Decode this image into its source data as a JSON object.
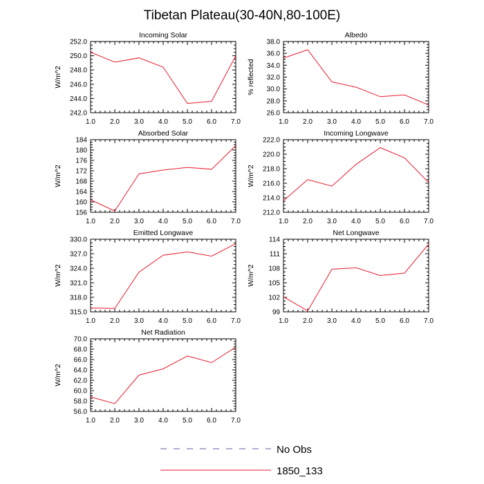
{
  "title": "Tibetan Plateau(30-40N,80-100E)",
  "legend": [
    {
      "label": "No Obs",
      "color": "#5a5aa8",
      "dashed": true
    },
    {
      "label": "1850_133",
      "color": "#e8192c",
      "dashed": false
    }
  ],
  "chart_data": [
    {
      "type": "line",
      "title": "Incoming Solar",
      "ylabel": "W/m^2",
      "xlim": [
        1,
        7
      ],
      "ylim": [
        242,
        252
      ],
      "xticks": [
        "1.0",
        "2.0",
        "3.0",
        "4.0",
        "5.0",
        "6.0",
        "7.0"
      ],
      "yticks": [
        "242.0",
        "244.0",
        "246.0",
        "248.0",
        "250.0",
        "252.0"
      ],
      "x": [
        1,
        2,
        3,
        4,
        5,
        6,
        7
      ],
      "series": [
        {
          "name": "1850_133",
          "values": [
            250.5,
            249.1,
            249.7,
            248.4,
            243.3,
            243.6,
            250.0
          ]
        }
      ]
    },
    {
      "type": "line",
      "title": "Albedo",
      "ylabel": "% reflected",
      "xlim": [
        1,
        7
      ],
      "ylim": [
        26,
        38
      ],
      "xticks": [
        "1.0",
        "2.0",
        "3.0",
        "4.0",
        "5.0",
        "6.0",
        "7.0"
      ],
      "yticks": [
        "26.0",
        "28.0",
        "30.0",
        "32.0",
        "34.0",
        "36.0",
        "38.0"
      ],
      "x": [
        1,
        2,
        3,
        4,
        5,
        6,
        7
      ],
      "series": [
        {
          "name": "1850_133",
          "values": [
            35.2,
            36.6,
            31.2,
            30.3,
            28.7,
            29.0,
            27.3
          ]
        }
      ]
    },
    {
      "type": "line",
      "title": "Absorbed Solar",
      "ylabel": "W/m^2",
      "xlim": [
        1,
        7
      ],
      "ylim": [
        156,
        184
      ],
      "xticks": [
        "1.0",
        "2.0",
        "3.0",
        "4.0",
        "5.0",
        "6.0",
        "7.0"
      ],
      "yticks": [
        "156",
        "160",
        "164",
        "168",
        "172",
        "176",
        "180",
        "184"
      ],
      "x": [
        1,
        2,
        3,
        4,
        5,
        6,
        7
      ],
      "series": [
        {
          "name": "1850_133",
          "values": [
            160.8,
            156.5,
            170.8,
            172.3,
            173.3,
            172.6,
            181.7
          ]
        }
      ]
    },
    {
      "type": "line",
      "title": "Incoming Longwave",
      "ylabel": "W/m^2",
      "xlim": [
        1,
        7
      ],
      "ylim": [
        212,
        222
      ],
      "xticks": [
        "1.0",
        "2.0",
        "3.0",
        "4.0",
        "5.0",
        "6.0",
        "7.0"
      ],
      "yticks": [
        "212.0",
        "214.0",
        "216.0",
        "218.0",
        "220.0",
        "222.0"
      ],
      "x": [
        1,
        2,
        3,
        4,
        5,
        6,
        7
      ],
      "series": [
        {
          "name": "1850_133",
          "values": [
            213.6,
            216.5,
            215.6,
            218.6,
            220.9,
            219.5,
            216.1
          ]
        }
      ]
    },
    {
      "type": "line",
      "title": "Emitted Longwave",
      "ylabel": "W/m^2",
      "xlim": [
        1,
        7
      ],
      "ylim": [
        315,
        330
      ],
      "xticks": [
        "1.0",
        "2.0",
        "3.0",
        "4.0",
        "5.0",
        "6.0",
        "7.0"
      ],
      "yticks": [
        "315.0",
        "318.0",
        "321.0",
        "324.0",
        "327.0",
        "330.0"
      ],
      "x": [
        1,
        2,
        3,
        4,
        5,
        6,
        7
      ],
      "series": [
        {
          "name": "1850_133",
          "values": [
            315.8,
            315.7,
            323.2,
            326.7,
            327.4,
            326.5,
            329.1
          ]
        }
      ]
    },
    {
      "type": "line",
      "title": "Net Longwave",
      "ylabel": "W/m^2",
      "xlim": [
        1,
        7
      ],
      "ylim": [
        99,
        114
      ],
      "xticks": [
        "1.0",
        "2.0",
        "3.0",
        "4.0",
        "5.0",
        "6.0",
        "7.0"
      ],
      "yticks": [
        "99",
        "102",
        "105",
        "108",
        "111",
        "114"
      ],
      "x": [
        1,
        2,
        3,
        4,
        5,
        6,
        7
      ],
      "series": [
        {
          "name": "1850_133",
          "values": [
            102.1,
            99.2,
            107.8,
            108.1,
            106.5,
            107.0,
            113.0
          ]
        }
      ]
    },
    {
      "type": "line",
      "title": "Net Radiation",
      "ylabel": "W/m^2",
      "xlim": [
        1,
        7
      ],
      "ylim": [
        56,
        70
      ],
      "xticks": [
        "1.0",
        "2.0",
        "3.0",
        "4.0",
        "5.0",
        "6.0",
        "7.0"
      ],
      "yticks": [
        "56.0",
        "58.0",
        "60.0",
        "62.0",
        "64.0",
        "66.0",
        "68.0",
        "70.0"
      ],
      "x": [
        1,
        2,
        3,
        4,
        5,
        6,
        7
      ],
      "series": [
        {
          "name": "1850_133",
          "values": [
            58.8,
            57.5,
            63.0,
            64.2,
            66.7,
            65.4,
            68.4
          ]
        }
      ]
    }
  ]
}
